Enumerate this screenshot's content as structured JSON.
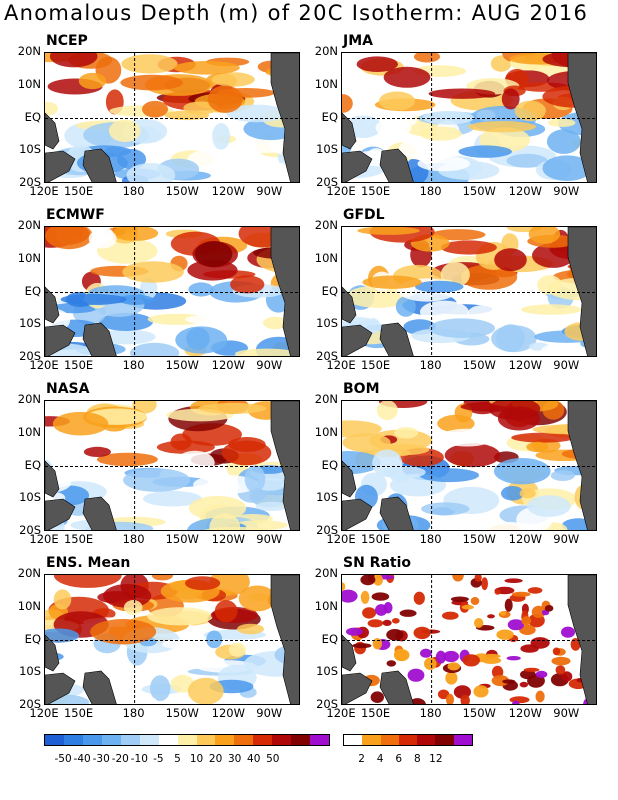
{
  "title": "Anomalous Depth (m) of 20C Isotherm: AUG 2016",
  "lat_labels": [
    "20N",
    "10N",
    "EQ",
    "10S",
    "20S"
  ],
  "lon_labels": [
    "120E",
    "150E",
    "180",
    "150W",
    "120W",
    "90W"
  ],
  "panels": [
    {
      "name": "NCEP",
      "seed": 1
    },
    {
      "name": "JMA",
      "seed": 2
    },
    {
      "name": "ECMWF",
      "seed": 3
    },
    {
      "name": "GFDL",
      "seed": 4
    },
    {
      "name": "NASA",
      "seed": 5
    },
    {
      "name": "BOM",
      "seed": 6
    },
    {
      "name": "ENS. Mean",
      "seed": 7
    },
    {
      "name": "SN Ratio",
      "seed": 8
    }
  ],
  "anomaly_scale": {
    "labels": [
      "-50",
      "-40",
      "-30",
      "-20",
      "-10",
      "-5",
      "5",
      "10",
      "20",
      "30",
      "40",
      "50"
    ],
    "colors": [
      "#1e5fd6",
      "#2f7ee3",
      "#4a98ec",
      "#6eb2f2",
      "#9fcdf6",
      "#cfe9fb",
      "#ffffff",
      "#fff0a8",
      "#fdca5a",
      "#f9a11c",
      "#ee6f0c",
      "#d52a05",
      "#b00808",
      "#820202",
      "#a00fd0"
    ]
  },
  "snr_scale": {
    "labels": [
      "2",
      "4",
      "6",
      "8",
      "12"
    ],
    "colors": [
      "#ffffff",
      "#f9a11c",
      "#ee6f0c",
      "#d52a05",
      "#b00808",
      "#820202",
      "#a00fd0"
    ]
  }
}
